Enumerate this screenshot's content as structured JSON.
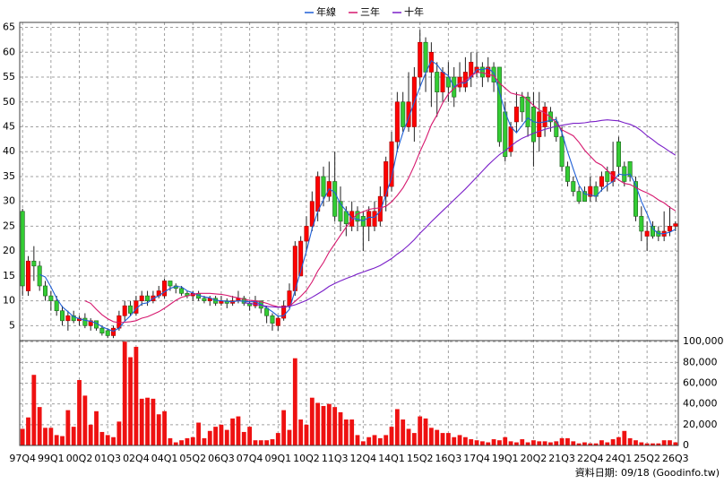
{
  "chart_data": {
    "type": "candlestick",
    "legend": "top",
    "grid": true,
    "up_color": "#ff0000",
    "down_color": "#33cc33",
    "categories": [
      "97Q4",
      null,
      null,
      null,
      null,
      "99Q1",
      null,
      null,
      null,
      null,
      "00Q2",
      null,
      null,
      null,
      null,
      "01Q3",
      null,
      null,
      null,
      null,
      "02Q4",
      null,
      null,
      null,
      null,
      "04Q1",
      null,
      null,
      null,
      null,
      "05Q2",
      null,
      null,
      null,
      null,
      "06Q3",
      null,
      null,
      null,
      null,
      "07Q4",
      null,
      null,
      null,
      null,
      "09Q1",
      null,
      null,
      null,
      null,
      "10Q2",
      null,
      null,
      null,
      null,
      "11Q3",
      null,
      null,
      null,
      null,
      "12Q4",
      null,
      null,
      null,
      null,
      "14Q1",
      null,
      null,
      null,
      null,
      "15Q2",
      null,
      null,
      null,
      null,
      "16Q3",
      null,
      null,
      null,
      null,
      "17Q4",
      null,
      null,
      null,
      null,
      "19Q1",
      null,
      null,
      null,
      null,
      "20Q2",
      null,
      null,
      null,
      null,
      "21Q3",
      null,
      null,
      null,
      null,
      "22Q4",
      null,
      null,
      null,
      null,
      "24Q1",
      null,
      null,
      null,
      null,
      "25Q2",
      null,
      null,
      null,
      null,
      "26Q3"
    ],
    "ohlc": [
      [
        28,
        28.5,
        11,
        13
      ],
      [
        12,
        19,
        11,
        18
      ],
      [
        18,
        21,
        14,
        17
      ],
      [
        17,
        18,
        12,
        13
      ],
      [
        13,
        14,
        10,
        11
      ],
      [
        11,
        12,
        8,
        10
      ],
      [
        10,
        11,
        7,
        8
      ],
      [
        8,
        9,
        5,
        6
      ],
      [
        6,
        8,
        4,
        7
      ],
      [
        7,
        8,
        5.5,
        6
      ],
      [
        6,
        7,
        5,
        6.5
      ],
      [
        6.5,
        7.5,
        4.5,
        5
      ],
      [
        5,
        6.5,
        4,
        6
      ],
      [
        6,
        6,
        4,
        4.5
      ],
      [
        4.5,
        5,
        3,
        3.5
      ],
      [
        4,
        4.5,
        2.5,
        3
      ],
      [
        3,
        5,
        2.5,
        4.5
      ],
      [
        4.5,
        8,
        4,
        7
      ],
      [
        7,
        10,
        6,
        9
      ],
      [
        9,
        10,
        7,
        7.5
      ],
      [
        7.5,
        11,
        7,
        10
      ],
      [
        10,
        12,
        9,
        11
      ],
      [
        11,
        12,
        9,
        10
      ],
      [
        10,
        12,
        9.5,
        11
      ],
      [
        11,
        13,
        10.5,
        12
      ],
      [
        11,
        14.5,
        10.5,
        14
      ],
      [
        14,
        14,
        12,
        13
      ],
      [
        13,
        13.5,
        11.5,
        12.5
      ],
      [
        12.5,
        13,
        11,
        11.5
      ],
      [
        11.5,
        12,
        10.5,
        11
      ],
      [
        11,
        12,
        10,
        11.5
      ],
      [
        11.5,
        12,
        10,
        10.5
      ],
      [
        10.5,
        11,
        9.5,
        10
      ],
      [
        10,
        11,
        9,
        10.5
      ],
      [
        10.5,
        11,
        9,
        9.5
      ],
      [
        9.5,
        11,
        9,
        10
      ],
      [
        10,
        10.5,
        8.5,
        9.5
      ],
      [
        9.5,
        11,
        9,
        10
      ],
      [
        10,
        12,
        9.5,
        10.5
      ],
      [
        10.5,
        11,
        9,
        9.5
      ],
      [
        9.5,
        10,
        8,
        9
      ],
      [
        9,
        11,
        8.5,
        10
      ],
      [
        10,
        10,
        7.5,
        8.5
      ],
      [
        8.5,
        9,
        5.5,
        7
      ],
      [
        7,
        7.5,
        4,
        5.5
      ],
      [
        5,
        7,
        4,
        6.5
      ],
      [
        6.5,
        10,
        6,
        9
      ],
      [
        9,
        13.5,
        8.5,
        12
      ],
      [
        12,
        22,
        11,
        21
      ],
      [
        15,
        23,
        15,
        22
      ],
      [
        22,
        27,
        20,
        25
      ],
      [
        25,
        32,
        24,
        30
      ],
      [
        28,
        36,
        26,
        35
      ],
      [
        35,
        37,
        29,
        31
      ],
      [
        31,
        38,
        30,
        34
      ],
      [
        34,
        40,
        26,
        27
      ],
      [
        30,
        33,
        24,
        26
      ],
      [
        28,
        29,
        23,
        25.5
      ],
      [
        25,
        30,
        24,
        28
      ],
      [
        28,
        29,
        24,
        26
      ],
      [
        27,
        28,
        20,
        25
      ],
      [
        25,
        29,
        22,
        28
      ],
      [
        25,
        30,
        24,
        28
      ],
      [
        26,
        33,
        25,
        31
      ],
      [
        31,
        39,
        28,
        38
      ],
      [
        33,
        44,
        32,
        42
      ],
      [
        42,
        52,
        40,
        50
      ],
      [
        50,
        52,
        44,
        45
      ],
      [
        45,
        56,
        44,
        50
      ],
      [
        45,
        57,
        42,
        55
      ],
      [
        55,
        64.5,
        53,
        62
      ],
      [
        62,
        63,
        52,
        56
      ],
      [
        56,
        62,
        49,
        60
      ],
      [
        56,
        58,
        47,
        52
      ],
      [
        52,
        57,
        50,
        56
      ],
      [
        55,
        58,
        50,
        53
      ],
      [
        55,
        57,
        49,
        51
      ],
      [
        53,
        58,
        52,
        55
      ],
      [
        53,
        59,
        52,
        56
      ],
      [
        55,
        60,
        53,
        58
      ],
      [
        56,
        60,
        55,
        57
      ],
      [
        57,
        58,
        53,
        55
      ],
      [
        55,
        59,
        54,
        57
      ],
      [
        57,
        58,
        52,
        54
      ],
      [
        57,
        57,
        41,
        42
      ],
      [
        48,
        50,
        38,
        39
      ],
      [
        40,
        46,
        39,
        45
      ],
      [
        46,
        52,
        44,
        49
      ],
      [
        51,
        52,
        46,
        48
      ],
      [
        51,
        52,
        43,
        45
      ],
      [
        49,
        52,
        37,
        42
      ],
      [
        43,
        52,
        40,
        48
      ],
      [
        45,
        50,
        43,
        49
      ],
      [
        48,
        49,
        44,
        46
      ],
      [
        46,
        47,
        42,
        43
      ],
      [
        43,
        45,
        36,
        37
      ],
      [
        37,
        38,
        33,
        34
      ],
      [
        34,
        35,
        31,
        32
      ],
      [
        32,
        33,
        29.5,
        30
      ],
      [
        32,
        33,
        30,
        30
      ],
      [
        31,
        35,
        30,
        33
      ],
      [
        33,
        34,
        30,
        31
      ],
      [
        33,
        36,
        32,
        35
      ],
      [
        36,
        37,
        32,
        34
      ],
      [
        34,
        42,
        33,
        36
      ],
      [
        42,
        43,
        35,
        37
      ],
      [
        37,
        38,
        33,
        34
      ],
      [
        38,
        38,
        34,
        35
      ],
      [
        34,
        35,
        26,
        27
      ],
      [
        27,
        29,
        22,
        24
      ],
      [
        23,
        26,
        20,
        24
      ],
      [
        25,
        26,
        22.5,
        23
      ],
      [
        24,
        25,
        22,
        23
      ],
      [
        23,
        28,
        22,
        24
      ],
      [
        24,
        29,
        23,
        25
      ],
      [
        25,
        26,
        24,
        25.5
      ]
    ],
    "series": [
      {
        "name": "年線",
        "color": "#1f5fd6",
        "values": [
          null,
          null,
          null,
          15.3,
          14.8,
          12.8,
          10.5,
          8.8,
          7.8,
          6.8,
          6.4,
          6.1,
          5.9,
          5.5,
          4.8,
          4.3,
          3.9,
          4.5,
          5.9,
          7,
          8.4,
          9.4,
          9.6,
          10.5,
          11,
          11.8,
          12.5,
          12.9,
          12.8,
          12,
          11.6,
          11.1,
          10.8,
          10.6,
          10.1,
          10,
          9.9,
          9.8,
          10,
          9.9,
          9.8,
          9.8,
          9.3,
          8.6,
          7.8,
          6.9,
          7,
          8.3,
          12.1,
          16,
          20,
          24.5,
          28,
          30.3,
          32.5,
          31.8,
          29.5,
          28.1,
          26.6,
          26.4,
          26.1,
          26.8,
          26.8,
          28,
          31.3,
          34.8,
          40.3,
          43.8,
          46.8,
          50,
          53,
          55.8,
          58.3,
          57.5,
          56,
          55.3,
          53,
          53.8,
          53.8,
          55,
          56.5,
          56.5,
          56.8,
          55.8,
          52,
          48,
          45,
          43.8,
          45.3,
          46.8,
          46,
          45.8,
          46,
          46.3,
          46.5,
          43.8,
          40,
          36.5,
          33.3,
          31.5,
          31.3,
          31,
          32.3,
          33.3,
          34,
          35.5,
          35.3,
          35.5,
          33.3,
          30,
          27.5,
          24.5,
          23.5,
          23.5,
          23.8,
          24.4
        ]
      },
      {
        "name": "三年",
        "color": "#d6186e",
        "values": [
          null,
          null,
          null,
          null,
          null,
          null,
          null,
          null,
          null,
          null,
          null,
          10,
          9.5,
          8.3,
          7.2,
          6.4,
          5.8,
          5.6,
          5.7,
          5.8,
          6,
          6.5,
          6.8,
          7.3,
          7.8,
          8.5,
          9.3,
          10.1,
          10.7,
          11,
          11.3,
          11.5,
          11.5,
          11.5,
          11.4,
          11.3,
          11.1,
          10.8,
          10.6,
          10.3,
          10.1,
          10,
          9.8,
          9.5,
          9.1,
          8.8,
          8.8,
          8.9,
          9.9,
          10.9,
          12.1,
          13.8,
          16,
          17.7,
          19.8,
          21.5,
          23.2,
          24.8,
          26.4,
          27.5,
          27.9,
          28.4,
          28.6,
          28.7,
          29,
          29.9,
          31.2,
          32.7,
          34.7,
          37.2,
          40,
          42.5,
          45.4,
          47.4,
          49.8,
          51.6,
          52.7,
          53.8,
          54.3,
          55.3,
          55.9,
          55.9,
          55.5,
          55.3,
          53.8,
          52.8,
          51.8,
          51.5,
          51.3,
          50.4,
          49.3,
          48.4,
          47.8,
          47,
          45.8,
          44.4,
          43.8,
          43.2,
          41.9,
          40.3,
          39.1,
          37.9,
          37.3,
          36.2,
          35.1,
          34.3,
          33.6,
          33.4,
          32.8,
          32.2,
          31.7,
          31.1,
          30.3,
          29.7,
          28.8,
          28.1
        ]
      },
      {
        "name": "十年",
        "color": "#7a1fc8",
        "values": [
          null,
          null,
          null,
          null,
          null,
          null,
          null,
          null,
          null,
          null,
          null,
          null,
          null,
          null,
          null,
          null,
          null,
          null,
          null,
          null,
          null,
          null,
          null,
          null,
          null,
          null,
          null,
          null,
          null,
          null,
          null,
          null,
          null,
          null,
          null,
          null,
          null,
          null,
          null,
          9.6,
          9.5,
          9.3,
          9.1,
          8.9,
          8.8,
          8.7,
          8.7,
          8.9,
          9.2,
          9.6,
          10.1,
          10.7,
          11.4,
          12.1,
          12.9,
          13.5,
          14,
          14.5,
          14.9,
          15.4,
          15.8,
          16.2,
          16.6,
          17.1,
          17.8,
          18.5,
          19.4,
          20.2,
          21.2,
          22.3,
          23.6,
          24.7,
          25.9,
          27,
          28.1,
          29.2,
          30.3,
          31.4,
          32.5,
          33.7,
          34.9,
          36.1,
          37.3,
          38.4,
          39.4,
          40.2,
          41.1,
          42,
          42.7,
          43.2,
          43.7,
          44.1,
          44.5,
          44.8,
          45.1,
          45.3,
          45.5,
          45.7,
          45.7,
          45.8,
          46,
          46.1,
          46.3,
          46.4,
          46.3,
          46.2,
          45.8,
          45.5,
          45,
          44.2,
          43.2,
          42.4,
          41.5,
          40.8,
          40,
          39.3
        ]
      }
    ],
    "ylim": [
      2,
      66
    ],
    "yticks": [
      5,
      10,
      15,
      20,
      25,
      30,
      35,
      40,
      45,
      50,
      55,
      60,
      65
    ],
    "volume": {
      "color": "#ee1111",
      "values": [
        16000,
        27000,
        68000,
        37000,
        17000,
        17000,
        10000,
        9000,
        34000,
        18000,
        63000,
        48000,
        20000,
        33000,
        13000,
        10000,
        8000,
        23000,
        100000,
        85000,
        95000,
        45000,
        46000,
        45000,
        30000,
        33000,
        7000,
        3000,
        5000,
        7000,
        8000,
        22000,
        7000,
        14000,
        18000,
        20000,
        15000,
        26000,
        28000,
        13000,
        18000,
        5000,
        5000,
        5000,
        6000,
        12000,
        34000,
        15000,
        84000,
        25000,
        20000,
        46000,
        41000,
        38000,
        40000,
        37000,
        32000,
        25000,
        25000,
        10000,
        4000,
        8000,
        10000,
        7000,
        10000,
        18000,
        35000,
        25000,
        16000,
        12000,
        28000,
        26000,
        17000,
        15000,
        12000,
        12000,
        8000,
        10000,
        8000,
        6000,
        5000,
        4000,
        3000,
        6000,
        5000,
        8000,
        4000,
        3000,
        6000,
        3000,
        5000,
        4000,
        4000,
        3000,
        4000,
        7000,
        7000,
        4000,
        2000,
        3000,
        2000,
        2000,
        5000,
        3000,
        6000,
        8000,
        14000,
        7000,
        5000,
        3000,
        2000,
        2000,
        2000,
        5000,
        5000,
        3000
      ],
      "ylim": [
        0,
        101000
      ],
      "yticks": [
        0,
        {
          "value": 20000,
          "label": "20,000"
        },
        {
          "value": 40000,
          "label": "40,000"
        },
        {
          "value": 60000,
          "label": "60,000"
        },
        {
          "value": 80000,
          "label": "80,000"
        },
        {
          "value": 100000,
          "label": "100,000"
        }
      ]
    },
    "source_note": "資料日期: 09/18 (Goodinfo.tw)"
  }
}
